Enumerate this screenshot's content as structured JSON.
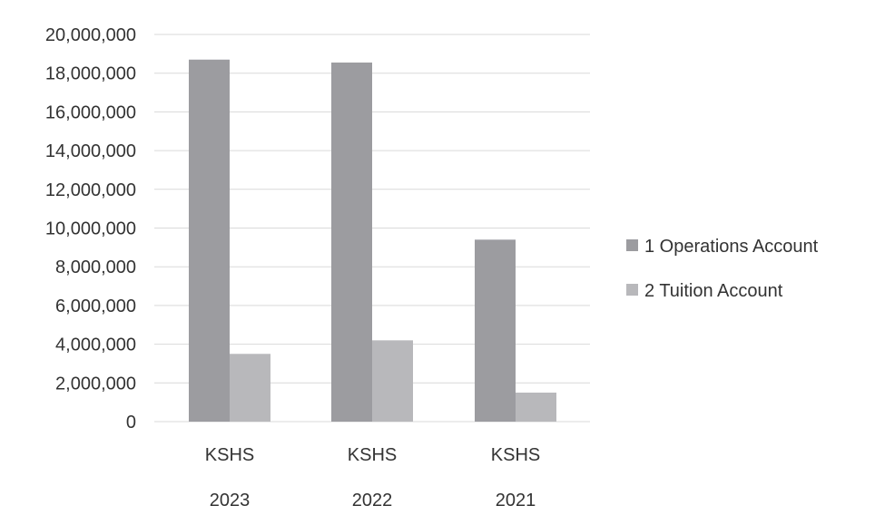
{
  "chart_data": {
    "type": "bar",
    "categories": [
      {
        "line1": "KSHS",
        "line2": "2023"
      },
      {
        "line1": "KSHS",
        "line2": "2022"
      },
      {
        "line1": "KSHS",
        "line2": "2021"
      }
    ],
    "series": [
      {
        "name": "1 Operations Account",
        "values": [
          18700000,
          18550000,
          9400000
        ],
        "color": "#9c9ca0"
      },
      {
        "name": "2 Tuition Account",
        "values": [
          3500000,
          4200000,
          1500000
        ],
        "color": "#b8b8bb"
      }
    ],
    "ylim": [
      0,
      20000000
    ],
    "yticks": [
      0,
      2000000,
      4000000,
      6000000,
      8000000,
      10000000,
      12000000,
      14000000,
      16000000,
      18000000,
      20000000
    ],
    "ytick_labels": [
      "0",
      "2,000,000",
      "4,000,000",
      "6,000,000",
      "8,000,000",
      "10,000,000",
      "12,000,000",
      "14,000,000",
      "16,000,000",
      "18,000,000",
      "20,000,000"
    ],
    "grid": true,
    "legend_position": "right",
    "gridline_color": "#d9d9d9",
    "text_color": "#333333"
  }
}
